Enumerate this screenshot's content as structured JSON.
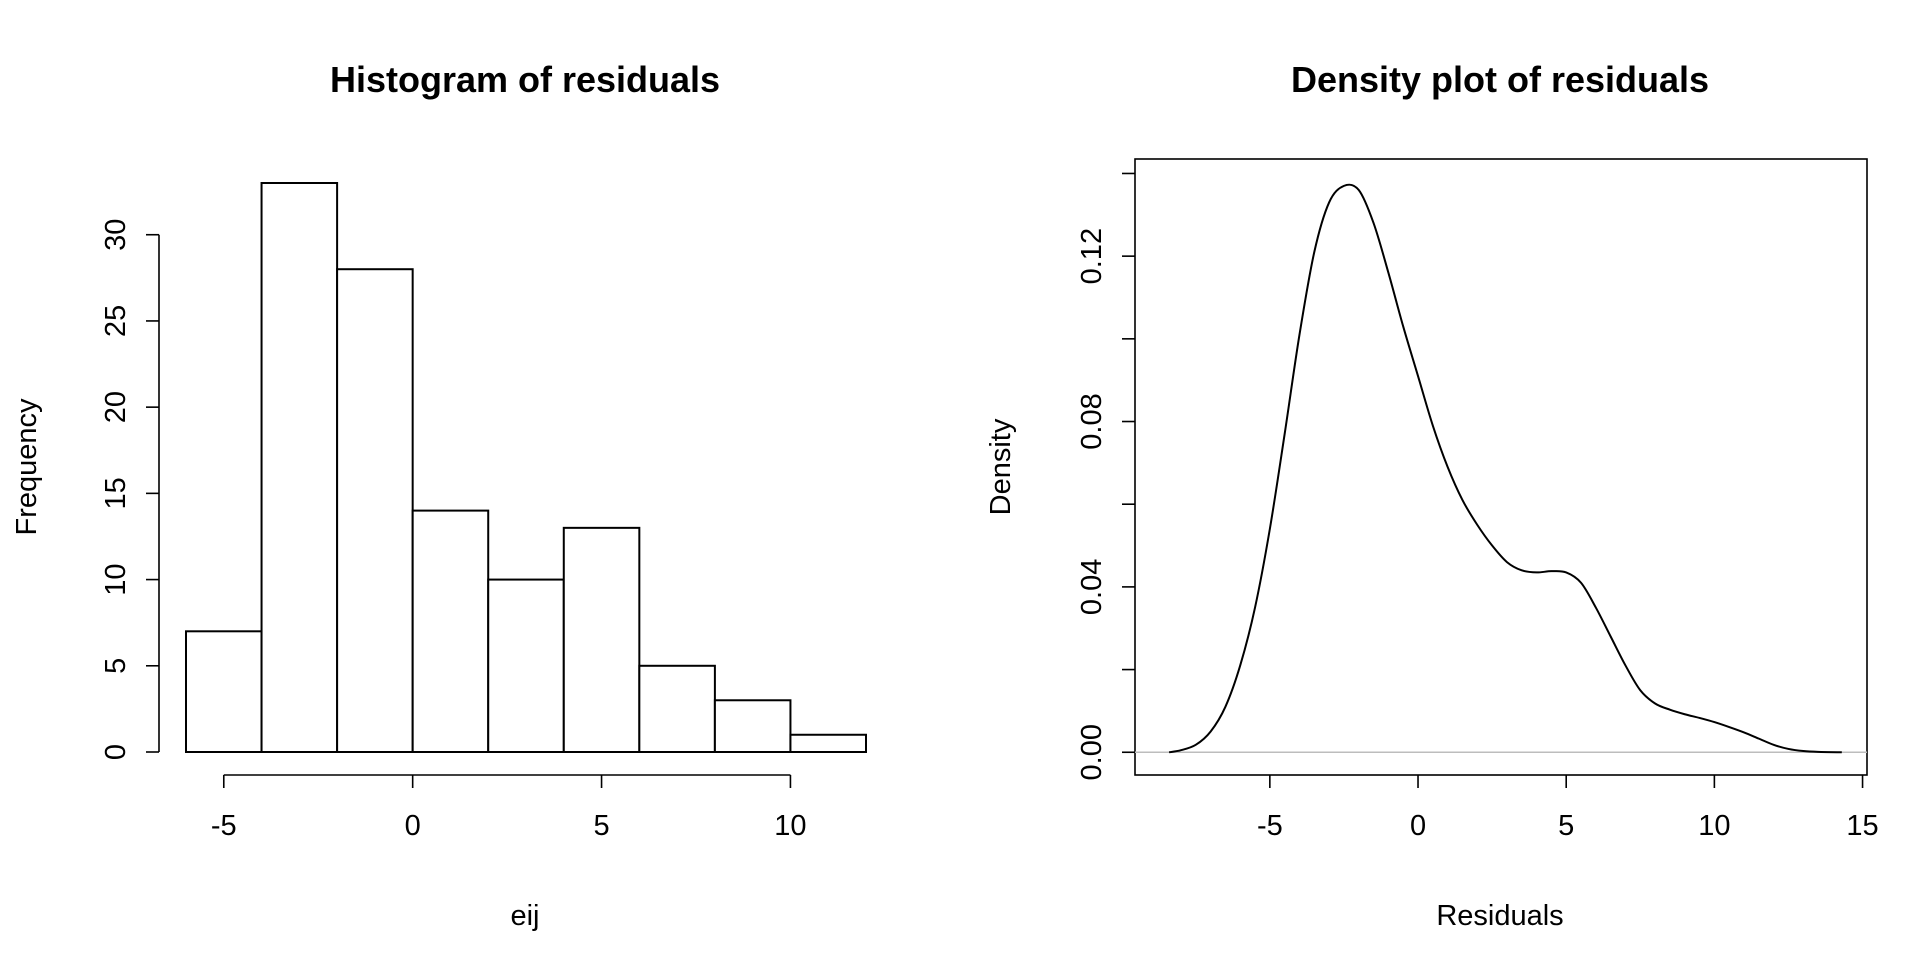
{
  "chart_data": [
    {
      "type": "bar",
      "title": "Histogram of residuals",
      "xlabel": "eij",
      "ylabel": "Frequency",
      "bin_edges": [
        -6,
        -4,
        -2,
        0,
        2,
        4,
        6,
        8,
        10,
        12
      ],
      "values": [
        7,
        33,
        28,
        14,
        10,
        13,
        5,
        3,
        1
      ],
      "xlim": [
        -6,
        12
      ],
      "ylim": [
        0,
        33
      ],
      "x_ticks": [
        -5,
        0,
        5,
        10
      ],
      "x_tick_labels": [
        "-5",
        "0",
        "5",
        "10"
      ],
      "y_ticks": [
        0,
        5,
        10,
        15,
        20,
        25,
        30
      ],
      "y_tick_labels": [
        "0",
        "5",
        "10",
        "15",
        "20",
        "25",
        "30"
      ],
      "grid": false
    },
    {
      "type": "line",
      "title": "Density plot of residuals",
      "xlabel": "Residuals",
      "ylabel": "Density",
      "x": [
        -8.4,
        -8,
        -7.5,
        -7,
        -6.5,
        -6,
        -5.5,
        -5,
        -4.5,
        -4,
        -3.5,
        -3,
        -2.5,
        -2,
        -1.5,
        -1,
        -0.5,
        0,
        0.5,
        1,
        1.5,
        2,
        2.5,
        3,
        3.5,
        4,
        4.5,
        5,
        5.5,
        6,
        6.5,
        7,
        7.5,
        8,
        8.5,
        9,
        9.5,
        10,
        10.5,
        11,
        11.5,
        12,
        12.5,
        13,
        13.5,
        14.3
      ],
      "y": [
        0.0,
        0.0005,
        0.0018,
        0.005,
        0.011,
        0.021,
        0.035,
        0.054,
        0.077,
        0.101,
        0.121,
        0.133,
        0.137,
        0.136,
        0.128,
        0.116,
        0.103,
        0.091,
        0.079,
        0.069,
        0.061,
        0.055,
        0.05,
        0.046,
        0.044,
        0.0435,
        0.0438,
        0.0435,
        0.041,
        0.035,
        0.028,
        0.021,
        0.015,
        0.0118,
        0.0103,
        0.0092,
        0.0083,
        0.0073,
        0.0061,
        0.0048,
        0.0033,
        0.0018,
        0.0008,
        0.0003,
        0.0001,
        0.0
      ],
      "xlim": [
        -9.55,
        15.15
      ],
      "ylim": [
        -0.0055,
        0.1435
      ],
      "x_ticks": [
        -5,
        0,
        5,
        10,
        15
      ],
      "x_tick_labels": [
        "-5",
        "0",
        "5",
        "10",
        "15"
      ],
      "y_ticks": [
        0,
        0.02,
        0.04,
        0.06,
        0.08,
        0.1,
        0.12,
        0.14
      ],
      "y_tick_labels": [
        "0.00",
        "",
        "0.04",
        "",
        "0.08",
        "",
        "0.12",
        ""
      ],
      "baseline": 0,
      "grid": false
    }
  ]
}
